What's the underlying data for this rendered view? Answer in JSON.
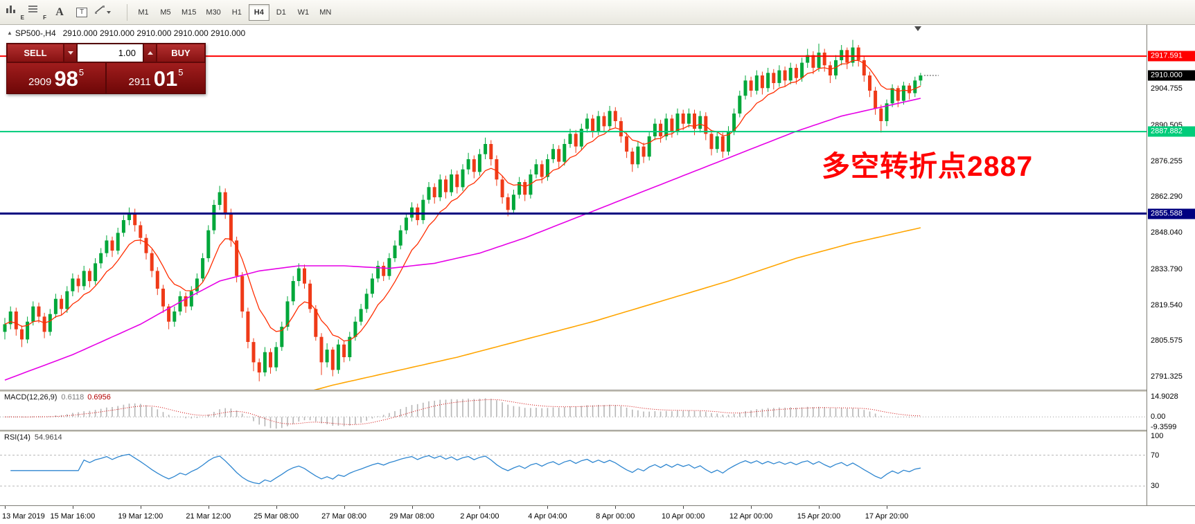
{
  "toolbar": {
    "tools": [
      {
        "name": "bar-chart-tool-button",
        "letter": "E"
      },
      {
        "name": "indicator-list-tool-button",
        "letter": "F"
      },
      {
        "name": "font-tool-button",
        "letter": "A"
      },
      {
        "name": "text-label-tool-button",
        "letter": "T"
      },
      {
        "name": "line-draw-tool-button",
        "letter": ""
      }
    ],
    "timeframes": [
      "M1",
      "M5",
      "M15",
      "M30",
      "H1",
      "H4",
      "D1",
      "W1",
      "MN"
    ],
    "active_timeframe": "H4"
  },
  "chart": {
    "header": {
      "marker": "▲",
      "symbol_period": "SP500-,H4",
      "quotes": "2910.000 2910.000 2910.000 2910.000 2910.000"
    },
    "trade_panel": {
      "sell_label": "SELL",
      "buy_label": "BUY",
      "volume": "1.00",
      "bid_small": "2909",
      "bid_big": "98",
      "bid_sup": "5",
      "ask_small": "2911",
      "ask_big": "01",
      "ask_sup": "5"
    },
    "annotation": {
      "text": "多空转折点2887",
      "color": "#ff0000"
    },
    "levels": [
      {
        "label": "2917.591",
        "price": 2917.591,
        "color": "#ff0000",
        "width": 2
      },
      {
        "label": "2887.882",
        "price": 2887.882,
        "color": "#00cc7a",
        "width": 2
      },
      {
        "label": "2855.588",
        "price": 2855.588,
        "color": "#000080",
        "width": 3
      }
    ],
    "current_price": {
      "label": "2910.000",
      "price": 2910.0,
      "color": "#000000"
    },
    "price_ticks": [
      "2904.755",
      "2890.505",
      "2876.255",
      "2862.290",
      "2848.040",
      "2833.790",
      "2819.540",
      "2805.575",
      "2791.325"
    ]
  },
  "chart_data": {
    "type": "candlestick",
    "symbol": "SP500-",
    "timeframe": "H4",
    "ylim": [
      2786.2,
      2929.9
    ],
    "colors": {
      "up": "#00a73a",
      "down": "#ef3a18"
    },
    "candles": [
      [
        2809,
        2814.5,
        2806,
        2812
      ],
      [
        2812,
        2819,
        2810,
        2817
      ],
      [
        2817,
        2818.5,
        2807.5,
        2810
      ],
      [
        2810,
        2811.5,
        2803,
        2806
      ],
      [
        2806,
        2815,
        2804.5,
        2813
      ],
      [
        2813,
        2821,
        2811.5,
        2819
      ],
      [
        2819,
        2820.5,
        2812.5,
        2815
      ],
      [
        2815,
        2816.5,
        2806.5,
        2809
      ],
      [
        2809,
        2818,
        2807.5,
        2816
      ],
      [
        2816,
        2824,
        2814.5,
        2822
      ],
      [
        2822,
        2823.5,
        2815.5,
        2818
      ],
      [
        2818,
        2827,
        2816.5,
        2825
      ],
      [
        2825,
        2832,
        2823,
        2830
      ],
      [
        2830,
        2831.5,
        2824.5,
        2827
      ],
      [
        2827,
        2835,
        2825.5,
        2833
      ],
      [
        2833,
        2834,
        2826.5,
        2829
      ],
      [
        2829,
        2838,
        2827.5,
        2836
      ],
      [
        2836,
        2842,
        2834,
        2840
      ],
      [
        2840,
        2847,
        2838.5,
        2845
      ],
      [
        2845,
        2846.5,
        2838.5,
        2841
      ],
      [
        2841,
        2850,
        2839.5,
        2848
      ],
      [
        2848,
        2855,
        2846.5,
        2853
      ],
      [
        2853,
        2858,
        2851,
        2856
      ],
      [
        2856,
        2857.5,
        2848.5,
        2851
      ],
      [
        2851,
        2852.5,
        2843.5,
        2846
      ],
      [
        2846,
        2847.5,
        2837.5,
        2840
      ],
      [
        2840,
        2841.5,
        2830.5,
        2833
      ],
      [
        2833,
        2834.5,
        2823.5,
        2826
      ],
      [
        2826,
        2827.5,
        2816.5,
        2819
      ],
      [
        2819,
        2820,
        2810,
        2813
      ],
      [
        2813,
        2819,
        2811,
        2817
      ],
      [
        2817,
        2825,
        2815.5,
        2823
      ],
      [
        2823,
        2824.5,
        2816.5,
        2819
      ],
      [
        2819,
        2827,
        2817.5,
        2825
      ],
      [
        2825,
        2832,
        2823.5,
        2830
      ],
      [
        2830,
        2840,
        2828.5,
        2838
      ],
      [
        2838,
        2851,
        2836.5,
        2849
      ],
      [
        2849,
        2861,
        2847.5,
        2859
      ],
      [
        2859,
        2866.5,
        2857,
        2864
      ],
      [
        2864,
        2865.5,
        2853.5,
        2856
      ],
      [
        2856,
        2857.5,
        2842.5,
        2845
      ],
      [
        2845,
        2846.5,
        2828.5,
        2831
      ],
      [
        2831,
        2832.5,
        2814.5,
        2817
      ],
      [
        2817,
        2818.5,
        2802.5,
        2805
      ],
      [
        2805,
        2806.5,
        2793.5,
        2797
      ],
      [
        2797,
        2798.5,
        2789.5,
        2793
      ],
      [
        2793,
        2803,
        2791.5,
        2801
      ],
      [
        2801,
        2802.5,
        2792.5,
        2795
      ],
      [
        2795,
        2805,
        2793.5,
        2803
      ],
      [
        2803,
        2813,
        2801.5,
        2811
      ],
      [
        2811,
        2823,
        2809.5,
        2821
      ],
      [
        2821,
        2831,
        2819.5,
        2829
      ],
      [
        2829,
        2836,
        2827,
        2834
      ],
      [
        2834,
        2835.5,
        2826,
        2828
      ],
      [
        2828,
        2829.5,
        2816.5,
        2818
      ],
      [
        2818,
        2819.5,
        2805.5,
        2807
      ],
      [
        2807,
        2808.5,
        2792,
        2797
      ],
      [
        2797,
        2804.5,
        2795,
        2802
      ],
      [
        2802,
        2803,
        2791.5,
        2794
      ],
      [
        2794,
        2806,
        2792.5,
        2804
      ],
      [
        2804,
        2805.5,
        2797,
        2799
      ],
      [
        2799,
        2809,
        2797.5,
        2807
      ],
      [
        2807,
        2815,
        2805.5,
        2813
      ],
      [
        2813,
        2820,
        2811.5,
        2818
      ],
      [
        2818,
        2826,
        2816.5,
        2824
      ],
      [
        2824,
        2832,
        2822.5,
        2830
      ],
      [
        2830,
        2837,
        2828.5,
        2835
      ],
      [
        2835,
        2836.5,
        2829,
        2831
      ],
      [
        2831,
        2840,
        2829.5,
        2838
      ],
      [
        2838,
        2845,
        2836.5,
        2843
      ],
      [
        2843,
        2851,
        2841.5,
        2849
      ],
      [
        2849,
        2856,
        2847.5,
        2854
      ],
      [
        2854,
        2860,
        2852.5,
        2858
      ],
      [
        2858,
        2859.5,
        2851,
        2853
      ],
      [
        2853,
        2863,
        2851.5,
        2861
      ],
      [
        2861,
        2868,
        2859.5,
        2866
      ],
      [
        2866,
        2867.5,
        2859.5,
        2862
      ],
      [
        2862,
        2871,
        2860.5,
        2869
      ],
      [
        2869,
        2870.5,
        2861.5,
        2864
      ],
      [
        2864,
        2873,
        2862.5,
        2871
      ],
      [
        2871,
        2872.5,
        2863.5,
        2866
      ],
      [
        2866,
        2875,
        2864.5,
        2873
      ],
      [
        2873,
        2879.5,
        2871,
        2877
      ],
      [
        2877,
        2878.5,
        2869.5,
        2872
      ],
      [
        2872,
        2881,
        2870.5,
        2879
      ],
      [
        2879,
        2885.5,
        2877,
        2883
      ],
      [
        2883,
        2884.5,
        2874.5,
        2877
      ],
      [
        2877,
        2878.5,
        2866.5,
        2869
      ],
      [
        2869,
        2870.5,
        2859.5,
        2862
      ],
      [
        2862,
        2863.5,
        2854.5,
        2857
      ],
      [
        2857,
        2865,
        2855.5,
        2863
      ],
      [
        2863,
        2870,
        2861.5,
        2868
      ],
      [
        2868,
        2869,
        2860.5,
        2863
      ],
      [
        2863,
        2873,
        2861.5,
        2871
      ],
      [
        2871,
        2877,
        2869.5,
        2875
      ],
      [
        2875,
        2876.5,
        2867.5,
        2870
      ],
      [
        2870,
        2879,
        2868.5,
        2877
      ],
      [
        2877,
        2883,
        2875.5,
        2881
      ],
      [
        2881,
        2882.5,
        2873.5,
        2876
      ],
      [
        2876,
        2885,
        2874.5,
        2883
      ],
      [
        2883,
        2889,
        2881.5,
        2887
      ],
      [
        2887,
        2888.5,
        2879.5,
        2882
      ],
      [
        2882,
        2891,
        2880.5,
        2889
      ],
      [
        2889,
        2895,
        2887.5,
        2893
      ],
      [
        2893,
        2894.5,
        2885.5,
        2888
      ],
      [
        2888,
        2896,
        2886.5,
        2894
      ],
      [
        2894,
        2895.5,
        2887.5,
        2890
      ],
      [
        2890,
        2898,
        2888.5,
        2896
      ],
      [
        2896,
        2897.5,
        2889.5,
        2892
      ],
      [
        2892,
        2893.5,
        2883.5,
        2886
      ],
      [
        2886,
        2887.5,
        2877.5,
        2880
      ],
      [
        2880,
        2881.5,
        2872,
        2875
      ],
      [
        2875,
        2884,
        2873.5,
        2882
      ],
      [
        2882,
        2883.5,
        2875.5,
        2878
      ],
      [
        2878,
        2888,
        2876.5,
        2886
      ],
      [
        2886,
        2893,
        2884.5,
        2891
      ],
      [
        2891,
        2892.5,
        2883.5,
        2886
      ],
      [
        2886,
        2895,
        2884.5,
        2893
      ],
      [
        2893,
        2894.5,
        2885.5,
        2888
      ],
      [
        2888,
        2897,
        2886.5,
        2895
      ],
      [
        2895,
        2896.5,
        2888.5,
        2891
      ],
      [
        2891,
        2897,
        2889.5,
        2895
      ],
      [
        2895,
        2896.5,
        2886.5,
        2889
      ],
      [
        2889,
        2896,
        2887.5,
        2894
      ],
      [
        2894,
        2895.5,
        2884.5,
        2887
      ],
      [
        2887,
        2888.5,
        2878.5,
        2881
      ],
      [
        2881,
        2888,
        2879.5,
        2886
      ],
      [
        2886,
        2887.5,
        2877.5,
        2880
      ],
      [
        2880,
        2890,
        2878.5,
        2888
      ],
      [
        2888,
        2897,
        2886.5,
        2895
      ],
      [
        2895,
        2904,
        2893.5,
        2902
      ],
      [
        2902,
        2910,
        2900.5,
        2908
      ],
      [
        2908,
        2909.5,
        2901.5,
        2904
      ],
      [
        2904,
        2912,
        2902.5,
        2910
      ],
      [
        2910,
        2911.5,
        2902.5,
        2905
      ],
      [
        2905,
        2913,
        2903.5,
        2911
      ],
      [
        2911,
        2912.5,
        2904.5,
        2907
      ],
      [
        2907,
        2914,
        2905.5,
        2912
      ],
      [
        2912,
        2913.5,
        2905.5,
        2908
      ],
      [
        2908,
        2915,
        2906.5,
        2913
      ],
      [
        2913,
        2914.5,
        2906.5,
        2909
      ],
      [
        2909,
        2917,
        2907.5,
        2915
      ],
      [
        2915,
        2920.5,
        2913,
        2918
      ],
      [
        2918,
        2919.5,
        2910.5,
        2913
      ],
      [
        2913,
        2922.5,
        2911.5,
        2919
      ],
      [
        2919,
        2920.5,
        2911.5,
        2914
      ],
      [
        2914,
        2915.5,
        2907,
        2910
      ],
      [
        2910,
        2918,
        2908.5,
        2916
      ],
      [
        2916,
        2922,
        2914,
        2920
      ],
      [
        2920,
        2921,
        2912.5,
        2915
      ],
      [
        2915,
        2924,
        2913.5,
        2921
      ],
      [
        2921,
        2922,
        2913.5,
        2916
      ],
      [
        2916,
        2917.5,
        2907.5,
        2910
      ],
      [
        2910,
        2911.5,
        2901.5,
        2904
      ],
      [
        2904,
        2905.5,
        2894.5,
        2897
      ],
      [
        2897,
        2898.5,
        2887.5,
        2892
      ],
      [
        2892,
        2900.5,
        2890,
        2899
      ],
      [
        2899,
        2906.5,
        2897.5,
        2905
      ],
      [
        2905,
        2906,
        2897.5,
        2900
      ],
      [
        2900,
        2907.5,
        2898.5,
        2906
      ],
      [
        2906,
        2907,
        2900.5,
        2903
      ],
      [
        2903,
        2909.5,
        2901.5,
        2908
      ],
      [
        2908,
        2911,
        2906,
        2910
      ]
    ],
    "time_labels": [
      {
        "idx": 0,
        "label": "13 Mar 2019"
      },
      {
        "idx": 12,
        "label": "15 Mar 16:00"
      },
      {
        "idx": 24,
        "label": "19 Mar 12:00"
      },
      {
        "idx": 36,
        "label": "21 Mar 12:00"
      },
      {
        "idx": 48,
        "label": "25 Mar 08:00"
      },
      {
        "idx": 60,
        "label": "27 Mar 08:00"
      },
      {
        "idx": 72,
        "label": "29 Mar 08:00"
      },
      {
        "idx": 84,
        "label": "2 Apr 04:00"
      },
      {
        "idx": 96,
        "label": "4 Apr 04:00"
      },
      {
        "idx": 108,
        "label": "8 Apr 00:00"
      },
      {
        "idx": 120,
        "label": "10 Apr 00:00"
      },
      {
        "idx": 132,
        "label": "12 Apr 00:00"
      },
      {
        "idx": 144,
        "label": "15 Apr 20:00"
      },
      {
        "idx": 156,
        "label": "17 Apr 20:00"
      }
    ],
    "overlays": {
      "ma_fast": {
        "type": "ema",
        "period": 9,
        "color": "#ff2d00"
      },
      "ma_mid": {
        "color": "#e600e6",
        "points": [
          [
            0,
            2790
          ],
          [
            12,
            2800
          ],
          [
            24,
            2812
          ],
          [
            32,
            2822
          ],
          [
            38,
            2829
          ],
          [
            45,
            2833
          ],
          [
            52,
            2835
          ],
          [
            60,
            2835
          ],
          [
            68,
            2834
          ],
          [
            76,
            2836
          ],
          [
            84,
            2840
          ],
          [
            92,
            2846
          ],
          [
            100,
            2853
          ],
          [
            108,
            2860
          ],
          [
            116,
            2867
          ],
          [
            124,
            2874
          ],
          [
            132,
            2881
          ],
          [
            140,
            2888
          ],
          [
            148,
            2894
          ],
          [
            156,
            2898
          ],
          [
            162,
            2901
          ]
        ]
      },
      "ma_slow": {
        "color": "#ffa500",
        "points": [
          [
            48,
            2782
          ],
          [
            58,
            2788
          ],
          [
            68,
            2793
          ],
          [
            80,
            2799
          ],
          [
            92,
            2806
          ],
          [
            104,
            2813
          ],
          [
            116,
            2821
          ],
          [
            128,
            2829
          ],
          [
            140,
            2838
          ],
          [
            150,
            2844
          ],
          [
            162,
            2850
          ]
        ]
      }
    },
    "indicators": [
      {
        "name": "MACD",
        "label": "MACD(12,26,9)",
        "value_main": "0.6118",
        "value_signal": "0.6956",
        "params": [
          12,
          26,
          9
        ],
        "ylim": [
          -9.5,
          18.5
        ],
        "axis_ticks": [
          "14.9028",
          "0.00",
          "-9.3599"
        ],
        "histogram_color": "#b6b6b6",
        "signal_color": "#d00000"
      },
      {
        "name": "RSI",
        "label": "RSI(14)",
        "value": "54.9614",
        "period": 14,
        "ylim": [
          5,
          100
        ],
        "axis_ticks": [
          "100",
          "70",
          "30"
        ],
        "levels": [
          70,
          30
        ],
        "line_color": "#2e86d0"
      }
    ]
  }
}
